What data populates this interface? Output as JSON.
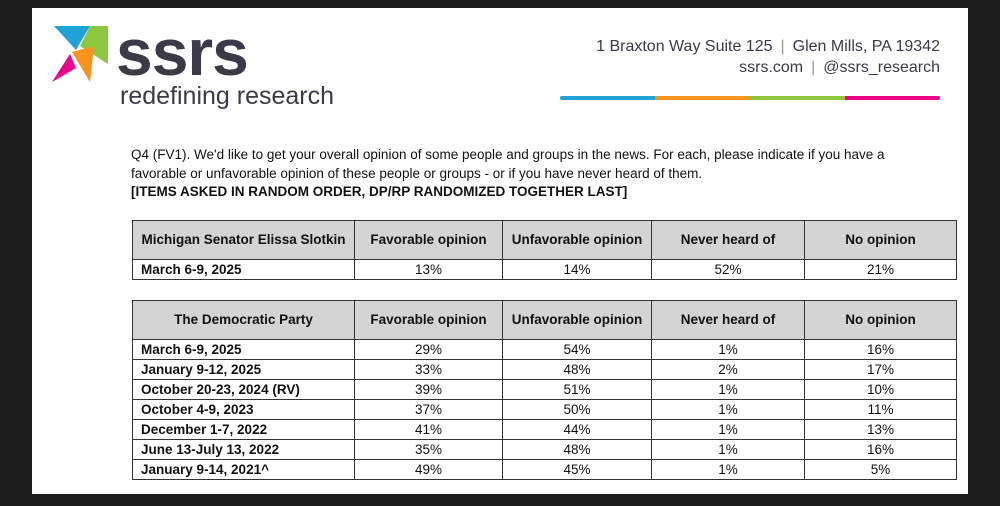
{
  "header": {
    "logo_word": "ssrs",
    "logo_tagline": "redefining research",
    "address_line1": "1 Braxton Way Suite 125",
    "address_city": "Glen Mills, PA 19342",
    "website": "ssrs.com",
    "social": "@ssrs_research",
    "rainbow_colors": [
      "#1fa2d6",
      "#f7941d",
      "#8dc63f",
      "#ec008c"
    ],
    "logo_colors": [
      "#1fa2d6",
      "#f7941d",
      "#8dc63f",
      "#ec008c"
    ]
  },
  "question": {
    "text": "Q4 (FV1). We'd like to get your overall opinion of some people and groups in the news. For each, please indicate if you have a favorable or unfavorable opinion of these people or groups - or if you have never heard of them.",
    "instruction": "[ITEMS ASKED IN RANDOM ORDER, DP/RP RANDOMIZED TOGETHER LAST]"
  },
  "tables": [
    {
      "subject": "Michigan Senator Elissa Slotkin",
      "columns": [
        "Favorable opinion",
        "Unfavorable opinion",
        "Never heard of",
        "No opinion"
      ],
      "rows": [
        {
          "date": "March 6-9, 2025",
          "values": [
            "13%",
            "14%",
            "52%",
            "21%"
          ]
        }
      ]
    },
    {
      "subject": "The Democratic Party",
      "columns": [
        "Favorable opinion",
        "Unfavorable opinion",
        "Never heard of",
        "No opinion"
      ],
      "rows": [
        {
          "date": "March 6-9, 2025",
          "values": [
            "29%",
            "54%",
            "1%",
            "16%"
          ]
        },
        {
          "date": "January 9-12, 2025",
          "values": [
            "33%",
            "48%",
            "2%",
            "17%"
          ]
        },
        {
          "date": "October 20-23, 2024 (RV)",
          "values": [
            "39%",
            "51%",
            "1%",
            "10%"
          ]
        },
        {
          "date": "October 4-9, 2023",
          "values": [
            "37%",
            "50%",
            "1%",
            "11%"
          ]
        },
        {
          "date": "December 1-7, 2022",
          "values": [
            "41%",
            "44%",
            "1%",
            "13%"
          ]
        },
        {
          "date": "June 13-July 13, 2022",
          "values": [
            "35%",
            "48%",
            "1%",
            "16%"
          ]
        },
        {
          "date": "January 9-14, 2021^",
          "values": [
            "49%",
            "45%",
            "1%",
            "5%"
          ]
        }
      ]
    }
  ]
}
